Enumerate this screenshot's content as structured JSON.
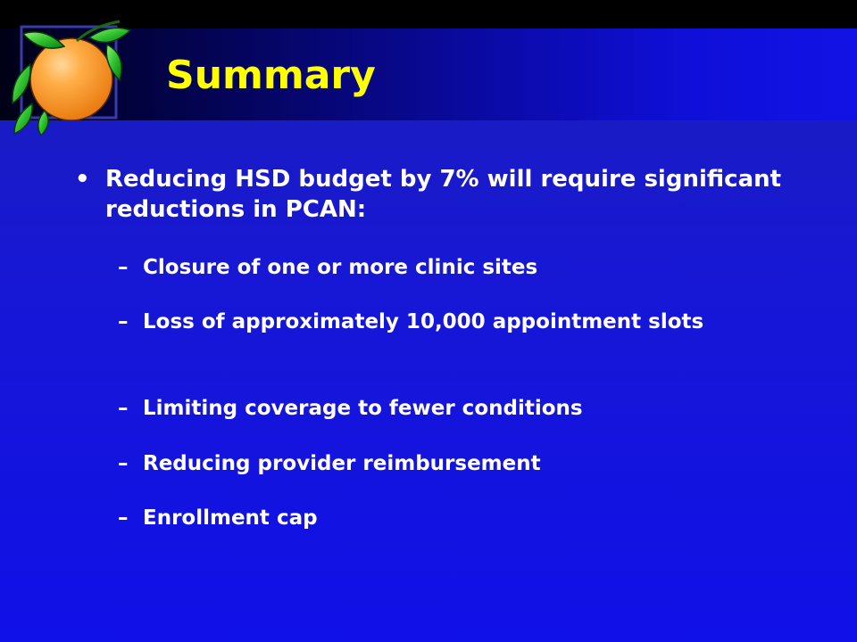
{
  "title": "Summary",
  "bullet": {
    "marker": "•",
    "text": "Reducing HSD budget by 7% will require significant reductions in PCAN:"
  },
  "sub_marker": "–",
  "sub_items": [
    "Closure of one or more clinic sites",
    "Loss of approximately 10,000 appointment slots",
    "Limiting coverage to fewer conditions",
    "Reducing provider reimbursement",
    "Enrollment cap"
  ],
  "icons": {
    "logo": "orange-with-leaves-icon"
  },
  "colors": {
    "title": "#ffff00",
    "text": "#ffffff",
    "background": "#1515d8",
    "orange": "#f7a020",
    "leaf": "#2bbf2b"
  }
}
